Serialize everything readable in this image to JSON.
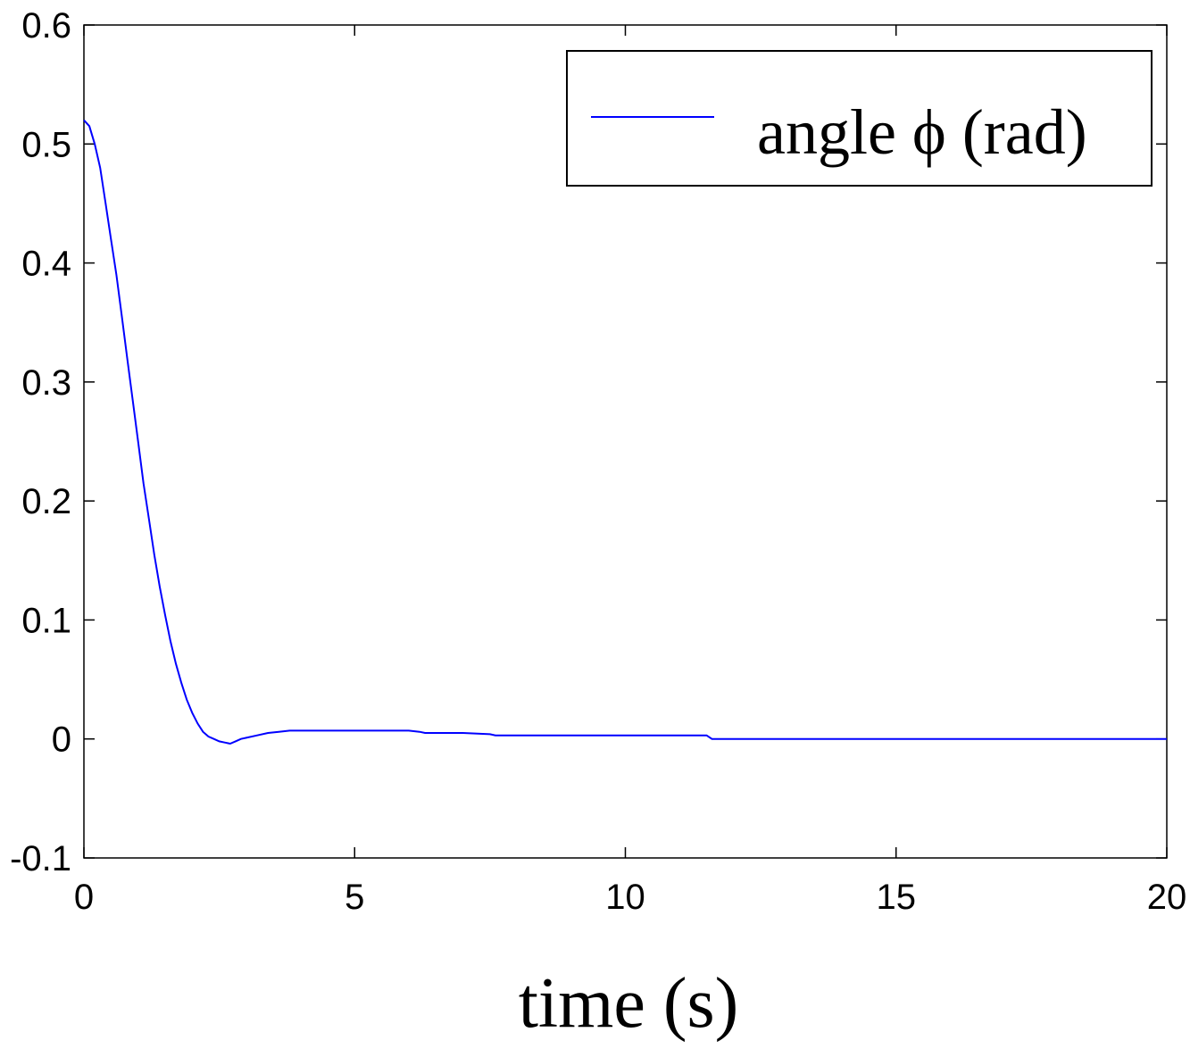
{
  "chart_data": {
    "type": "line",
    "title": "",
    "xlabel": "time (s)",
    "ylabel": "",
    "xlim": [
      0,
      20
    ],
    "ylim": [
      -0.1,
      0.6
    ],
    "xticks": [
      0,
      5,
      10,
      15,
      20
    ],
    "xtick_labels": [
      "0",
      "5",
      "10",
      "15",
      "20"
    ],
    "yticks": [
      -0.1,
      0,
      0.1,
      0.2,
      0.3,
      0.4,
      0.5,
      0.6
    ],
    "ytick_labels": [
      "-0.1",
      "0",
      "0.1",
      "0.2",
      "0.3",
      "0.4",
      "0.5",
      "0.6"
    ],
    "grid": false,
    "legend_position": "top-right",
    "series": [
      {
        "name": "angle ϕ (rad)",
        "color": "#0000ff",
        "x": [
          0,
          0.1,
          0.2,
          0.3,
          0.4,
          0.5,
          0.6,
          0.7,
          0.8,
          0.9,
          1.0,
          1.1,
          1.2,
          1.3,
          1.4,
          1.5,
          1.6,
          1.7,
          1.8,
          1.9,
          2.0,
          2.1,
          2.2,
          2.3,
          2.4,
          2.5,
          2.6,
          2.7,
          2.8,
          2.9,
          3.0,
          3.2,
          3.4,
          3.6,
          3.8,
          4.0,
          4.5,
          5.0,
          5.5,
          6.0,
          6.2,
          6.3,
          7.0,
          7.5,
          7.6,
          9.0,
          11.5,
          11.6,
          13.0,
          15.0,
          17.5,
          20.0
        ],
        "y": [
          0.52,
          0.515,
          0.5,
          0.48,
          0.45,
          0.42,
          0.39,
          0.355,
          0.32,
          0.285,
          0.25,
          0.215,
          0.185,
          0.155,
          0.128,
          0.104,
          0.082,
          0.063,
          0.047,
          0.033,
          0.022,
          0.013,
          0.006,
          0.002,
          0.0,
          -0.002,
          -0.003,
          -0.004,
          -0.002,
          0.0,
          0.001,
          0.003,
          0.005,
          0.006,
          0.007,
          0.007,
          0.007,
          0.007,
          0.007,
          0.007,
          0.006,
          0.005,
          0.005,
          0.004,
          0.003,
          0.003,
          0.003,
          0.0,
          0.0,
          0.0,
          0.0,
          0.0
        ]
      }
    ]
  }
}
